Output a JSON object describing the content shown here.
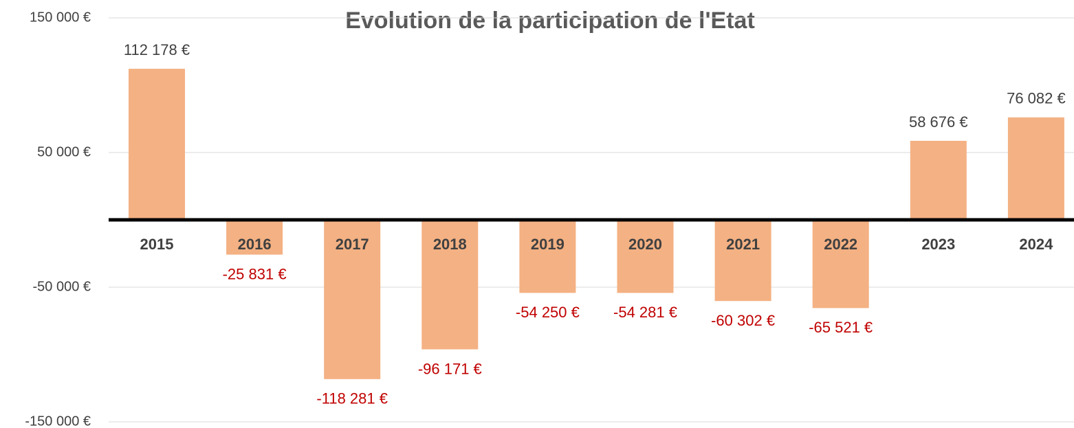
{
  "chart_data": {
    "type": "bar",
    "title": "Evolution de la participation de l'Etat",
    "categories": [
      "2015",
      "2016",
      "2017",
      "2018",
      "2019",
      "2020",
      "2021",
      "2022",
      "2023",
      "2024"
    ],
    "values": [
      112178,
      -25831,
      -118281,
      -96171,
      -54250,
      -54281,
      -60302,
      -65521,
      58676,
      76082
    ],
    "value_labels": [
      "112 178 €",
      "-25 831 €",
      "-118 281 €",
      "-96 171 €",
      "-54 250 €",
      "-54 281 €",
      "-60 302 €",
      "-65 521 €",
      "58 676 €",
      "76 082 €"
    ],
    "color": "#f4b183",
    "ylim": [
      -150000,
      150000
    ],
    "yticks": [
      {
        "value": -150000,
        "label": "-150 000 €"
      },
      {
        "value": -50000,
        "label": "-50 000 €"
      },
      {
        "value": 50000,
        "label": "50 000 €"
      },
      {
        "value": 150000,
        "label": "150 000 €"
      }
    ],
    "grid": true
  }
}
